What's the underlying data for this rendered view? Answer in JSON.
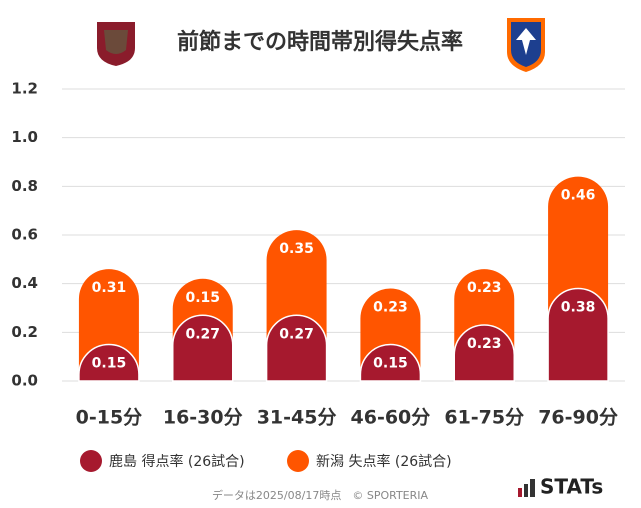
{
  "chart_data": {
    "type": "bar",
    "stacked": true,
    "title": "前節までの時間帯別得失点率",
    "categories": [
      "0-15分",
      "16-30分",
      "31-45分",
      "46-60分",
      "61-75分",
      "76-90分"
    ],
    "series": [
      {
        "name": "鹿島 得点率 (26試合)",
        "color": "#a6192e",
        "values": [
          0.15,
          0.27,
          0.27,
          0.15,
          0.23,
          0.38
        ]
      },
      {
        "name": "新潟 失点率 (26試合)",
        "color": "#ff5500",
        "values": [
          0.31,
          0.15,
          0.35,
          0.23,
          0.23,
          0.46
        ]
      }
    ],
    "ylim": [
      0,
      1.2
    ],
    "yticks": [
      {
        "value": 0,
        "label": "0.0"
      },
      0.2,
      0.4,
      0.6,
      0.8,
      {
        "value": 1,
        "label": "1.0"
      },
      1.2
    ],
    "grid": true,
    "footnote": "データは2025/08/17時点　© SPORTERIA",
    "brand": "STATs"
  }
}
